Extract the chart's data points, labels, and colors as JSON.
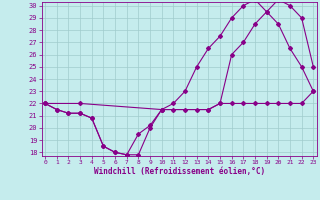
{
  "xlabel": "Windchill (Refroidissement éolien,°C)",
  "xlim": [
    0,
    23
  ],
  "ylim": [
    18,
    30
  ],
  "xticks": [
    0,
    1,
    2,
    3,
    4,
    5,
    6,
    7,
    8,
    9,
    10,
    11,
    12,
    13,
    14,
    15,
    16,
    17,
    18,
    19,
    20,
    21,
    22,
    23
  ],
  "yticks": [
    18,
    19,
    20,
    21,
    22,
    23,
    24,
    25,
    26,
    27,
    28,
    29,
    30
  ],
  "background_color": "#c5eced",
  "grid_color": "#a0cccc",
  "line_color": "#880088",
  "line1_x": [
    0,
    1,
    2,
    3,
    4,
    5,
    6,
    7,
    8,
    9,
    10,
    11,
    12,
    13,
    14,
    15,
    16,
    17,
    18,
    19,
    20,
    21,
    22,
    23
  ],
  "line1_y": [
    22,
    21.5,
    21.2,
    21.2,
    20.8,
    18.5,
    18,
    17.8,
    19.5,
    20.2,
    21.5,
    21.5,
    21.5,
    21.5,
    21.5,
    22,
    22,
    22,
    22,
    22,
    22,
    22,
    22,
    23
  ],
  "line2_x": [
    0,
    1,
    2,
    3,
    4,
    5,
    6,
    7,
    8,
    9,
    10,
    11,
    12,
    13,
    14,
    15,
    16,
    17,
    18,
    19,
    20,
    21,
    22,
    23
  ],
  "line2_y": [
    22,
    21.5,
    21.2,
    21.2,
    20.8,
    18.5,
    18,
    17.8,
    17.8,
    20,
    21.5,
    22,
    23,
    25,
    26.5,
    27.5,
    29,
    30,
    30.5,
    29.5,
    28.5,
    26.5,
    25,
    23
  ],
  "line3_x": [
    0,
    3,
    10,
    14,
    15,
    16,
    17,
    18,
    19,
    20,
    21,
    22,
    23
  ],
  "line3_y": [
    22,
    22,
    21.5,
    21.5,
    22,
    26,
    27,
    28.5,
    29.5,
    30.5,
    30,
    29,
    25
  ]
}
